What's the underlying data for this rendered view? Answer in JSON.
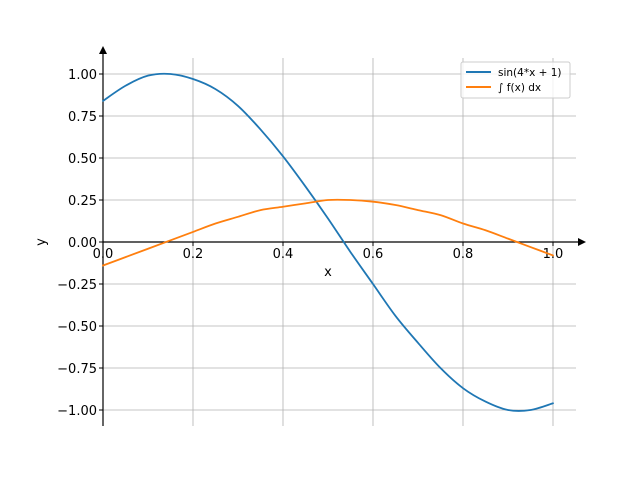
{
  "chart_data": {
    "type": "line",
    "xlabel": "x",
    "ylabel": "y",
    "xlim": [
      0.0,
      1.0
    ],
    "ylim": [
      -1.1,
      1.1
    ],
    "grid": true,
    "legend_position": "top-right",
    "axes_style": "centered spines with arrowheads",
    "x_ticks": [
      "0.0",
      "0.2",
      "0.4",
      "0.6",
      "0.8",
      "1.0"
    ],
    "y_ticks": [
      "−1.00",
      "−0.75",
      "−0.50",
      "−0.25",
      "0.00",
      "0.25",
      "0.50",
      "0.75",
      "1.00"
    ],
    "x": [
      0.0,
      0.05,
      0.1,
      0.15,
      0.2,
      0.25,
      0.3,
      0.35,
      0.4,
      0.45,
      0.5,
      0.55,
      0.6,
      0.65,
      0.7,
      0.75,
      0.8,
      0.85,
      0.9,
      0.95,
      1.0
    ],
    "series": [
      {
        "name": "sin(4*x + 1)",
        "color": "#1f77b4",
        "values": [
          0.84,
          0.93,
          0.99,
          1.0,
          0.97,
          0.91,
          0.81,
          0.67,
          0.51,
          0.33,
          0.14,
          -0.06,
          -0.25,
          -0.44,
          -0.6,
          -0.75,
          -0.87,
          -0.95,
          -1.0,
          -1.0,
          -0.96
        ]
      },
      {
        "name": "∫ f(x) dx",
        "color": "#ff7f0e",
        "values": [
          -0.14,
          -0.09,
          -0.04,
          0.01,
          0.06,
          0.11,
          0.15,
          0.19,
          0.21,
          0.23,
          0.25,
          0.25,
          0.24,
          0.22,
          0.19,
          0.16,
          0.11,
          0.07,
          0.02,
          -0.03,
          -0.08
        ]
      }
    ]
  }
}
